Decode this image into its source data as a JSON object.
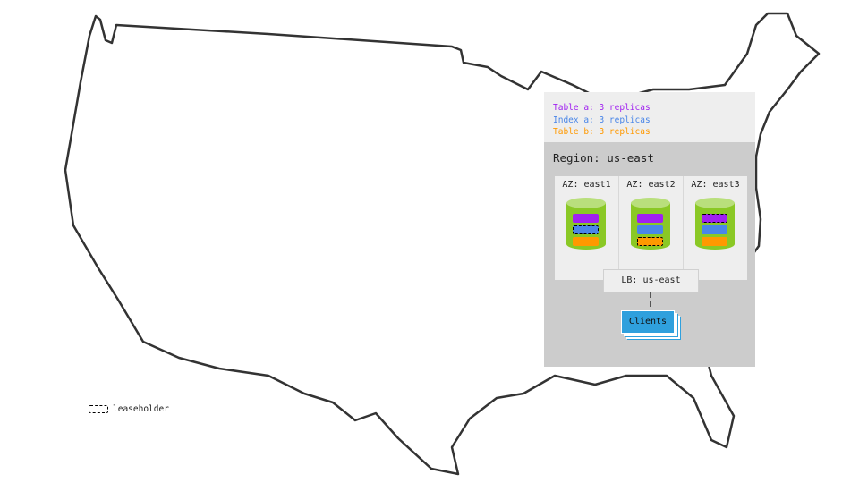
{
  "legend": {
    "items": [
      {
        "label": "Table a: 3 replicas",
        "color": "#a020f0"
      },
      {
        "label": "Index a: 3 replicas",
        "color": "#4a86e8"
      },
      {
        "label": "Table b: 3 replicas",
        "color": "#ff9900"
      }
    ]
  },
  "region": {
    "title": "Region: us-east",
    "azs": [
      {
        "label": "AZ: east1",
        "leaseholder": "Index a"
      },
      {
        "label": "AZ: east2",
        "leaseholder": "Table b"
      },
      {
        "label": "AZ: east3",
        "leaseholder": "Table a"
      }
    ],
    "lb_label": "LB: us-east",
    "clients_label": "Clients"
  },
  "leaseholder_legend": "leaseholder",
  "colors": {
    "table_a": "#a020f0",
    "index_a": "#4a86e8",
    "table_b": "#ff9900",
    "node": "#8ac825",
    "clients": "#2fa0dd"
  }
}
